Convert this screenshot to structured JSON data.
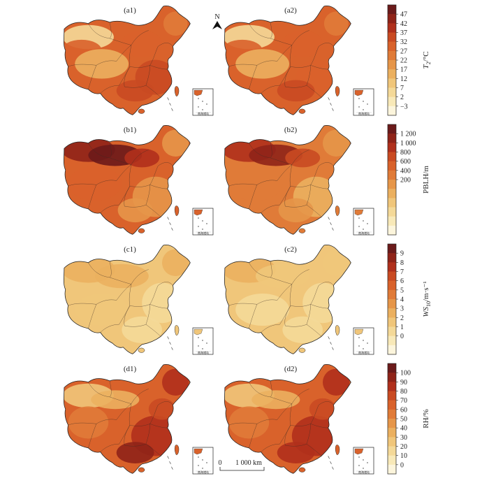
{
  "north_arrow": {
    "label": "N"
  },
  "scale_bar": {
    "start_label": "0",
    "end_label": "1 000 km"
  },
  "inset_label": "南海诸岛",
  "rows": [
    {
      "variable": "T2",
      "title_main": "T",
      "title_sub": "2",
      "title_unit": "/°C",
      "panels": [
        "(a1)",
        "(a2)"
      ],
      "colorbar": {
        "ticks": [
          "47",
          "42",
          "37",
          "32",
          "27",
          "22",
          "17",
          "12",
          "7",
          "2",
          "−3"
        ],
        "colors": [
          "#6b1a1a",
          "#8f2318",
          "#b0301c",
          "#c94a22",
          "#d9622b",
          "#e07b38",
          "#e69649",
          "#ebb05f",
          "#f0c67a",
          "#f4d998",
          "#f8e9b8",
          "#fcf5dc"
        ],
        "intensity": {
          "panel1": 0.62,
          "panel2": 0.6
        }
      }
    },
    {
      "variable": "PBLH",
      "title_main": "PBLH/m",
      "title_sub": "",
      "title_unit": "",
      "panels": [
        "(b1)",
        "(b2)"
      ],
      "colorbar": {
        "ticks": [
          "1 200",
          "1 000",
          "800",
          "600",
          "400",
          "200"
        ],
        "colors": [
          "#6b1a1a",
          "#8f2318",
          "#b0301c",
          "#c94a22",
          "#d9622b",
          "#e07b38",
          "#e69649",
          "#ebb05f",
          "#f0c67a",
          "#f4d998",
          "#f8e9b8",
          "#fcf5dc"
        ],
        "intensity": {
          "panel1": 0.6,
          "panel2": 0.52
        }
      }
    },
    {
      "variable": "WS10",
      "title_main": "WS",
      "title_sub": "10",
      "title_unit": "/m·s⁻¹",
      "panels": [
        "(c1)",
        "(c2)"
      ],
      "colorbar": {
        "ticks": [
          "9",
          "8",
          "7",
          "6",
          "5",
          "4",
          "3",
          "2",
          "1",
          "0"
        ],
        "colors": [
          "#6b1a1a",
          "#8f2318",
          "#b0301c",
          "#c94a22",
          "#d9622b",
          "#e07b38",
          "#e69649",
          "#ebb05f",
          "#f0c67a",
          "#f4d998",
          "#f8e9b8",
          "#fcf5dc"
        ],
        "intensity": {
          "panel1": 0.28,
          "panel2": 0.26
        }
      }
    },
    {
      "variable": "RH",
      "title_main": "RH/%",
      "title_sub": "",
      "title_unit": "",
      "panels": [
        "(d1)",
        "(d2)"
      ],
      "colorbar": {
        "ticks": [
          "100",
          "90",
          "80",
          "70",
          "60",
          "50",
          "40",
          "30",
          "20",
          "10",
          "0"
        ],
        "colors": [
          "#6b1a1a",
          "#8f2318",
          "#b0301c",
          "#c94a22",
          "#d9622b",
          "#e07b38",
          "#e69649",
          "#ebb05f",
          "#f0c67a",
          "#f4d998",
          "#f8e9b8",
          "#fcf5dc"
        ],
        "intensity": {
          "panel1": 0.66,
          "panel2": 0.64
        }
      }
    }
  ]
}
